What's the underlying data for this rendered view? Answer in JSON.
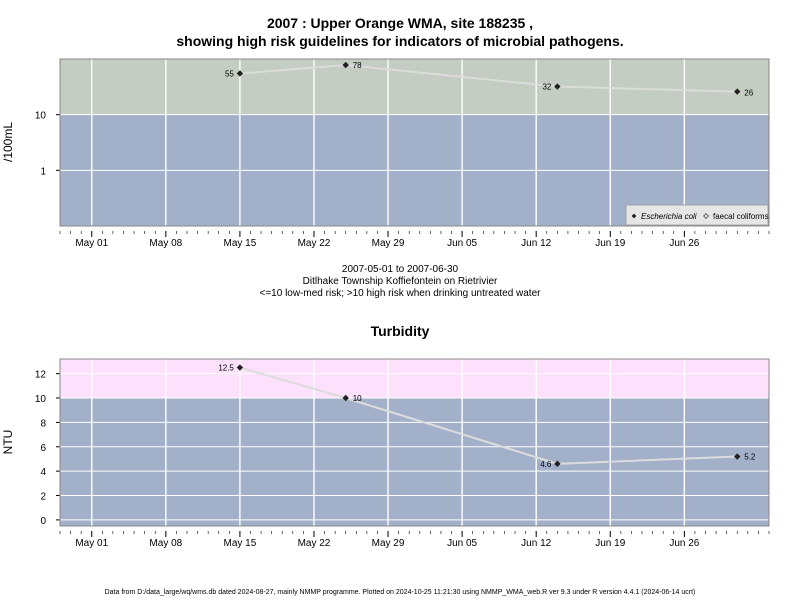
{
  "header": {
    "title_line1": "2007 : Upper Orange WMA, site 188235 ,",
    "title_line2": "showing high risk guidelines for indicators of microbial pathogens."
  },
  "subinfo": {
    "date_range": "2007-05-01 to 2007-06-30",
    "site_name": "Ditlhake Township Koffiefontein on Rietrivier",
    "guideline_note": "<=10 low-med risk; >10 high risk when drinking untreated water"
  },
  "footer": {
    "text": "Data from D:/data_large/wq/wms.db dated 2024-08-27, mainly NMMP programme. Plotted on 2024-10-25 11:21:30 using NMMP_WMA_web.R ver 9.3 under R version 4.4.1 (2024-06-14 ucrt)"
  },
  "colors": {
    "high_risk_microbial": "#c4cdc1",
    "low_risk": "#a2b1c9",
    "high_risk_turbidity": "#fce0fc",
    "grid": "#ffffff",
    "series_line": "#dcdcdc",
    "point": "#202020"
  },
  "chart_data": [
    {
      "type": "line",
      "title": "",
      "xlabel": "",
      "ylabel": "/100mL",
      "y_scale": "log",
      "ylim": [
        0.1,
        100
      ],
      "xlim": [
        "2007-04-28",
        "2007-07-04"
      ],
      "y_ticks": [
        1,
        10
      ],
      "y_tick_labels": [
        "1",
        "10"
      ],
      "x_ticks": [
        "2007-05-01",
        "2007-05-08",
        "2007-05-15",
        "2007-05-22",
        "2007-05-29",
        "2007-06-05",
        "2007-06-12",
        "2007-06-19",
        "2007-06-26"
      ],
      "x_tick_labels": [
        "May 01",
        "May 08",
        "May 15",
        "May 22",
        "May 29",
        "Jun 05",
        "Jun 12",
        "Jun 19",
        "Jun 26"
      ],
      "grid": true,
      "guideline": 10,
      "legend": {
        "placement": "bottom-right"
      },
      "series": [
        {
          "name": "Escherichia coli",
          "x": [
            "2007-05-15",
            "2007-05-25",
            "2007-06-14",
            "2007-07-01"
          ],
          "y": [
            55,
            78,
            32,
            26
          ],
          "labels": [
            "55",
            "78",
            "32",
            "26"
          ]
        },
        {
          "name": "faecal coliforms",
          "x": [],
          "y": [],
          "labels": []
        }
      ]
    },
    {
      "type": "line",
      "title": "Turbidity",
      "xlabel": "",
      "ylabel": "NTU",
      "ylim": [
        -0.5,
        13.2
      ],
      "xlim": [
        "2007-04-28",
        "2007-07-04"
      ],
      "y_ticks": [
        0,
        2,
        4,
        6,
        8,
        10,
        12
      ],
      "y_tick_labels": [
        "0",
        "2",
        "4",
        "6",
        "8",
        "10",
        "12"
      ],
      "x_ticks": [
        "2007-05-01",
        "2007-05-08",
        "2007-05-15",
        "2007-05-22",
        "2007-05-29",
        "2007-06-05",
        "2007-06-12",
        "2007-06-19",
        "2007-06-26"
      ],
      "x_tick_labels": [
        "May 01",
        "May 08",
        "May 15",
        "May 22",
        "May 29",
        "Jun 05",
        "Jun 12",
        "Jun 19",
        "Jun 26"
      ],
      "grid": true,
      "guideline": 10,
      "series": [
        {
          "name": "",
          "x": [
            "2007-05-15",
            "2007-05-25",
            "2007-06-14",
            "2007-07-01"
          ],
          "y": [
            12.5,
            10,
            4.6,
            5.2
          ],
          "labels": [
            "12.5",
            "10",
            "4.6",
            "5.2"
          ]
        }
      ]
    }
  ]
}
